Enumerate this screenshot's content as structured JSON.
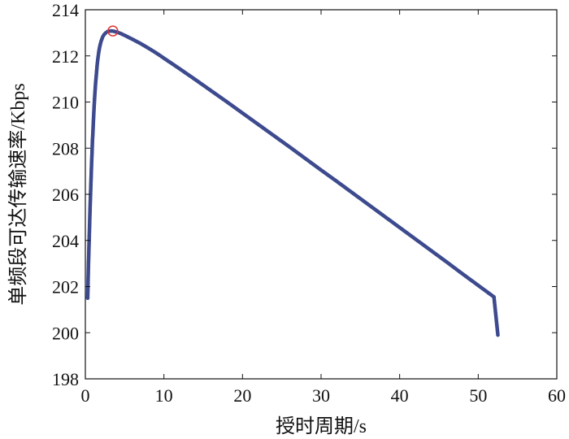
{
  "chart_data": {
    "type": "scatter",
    "title": "",
    "xlabel": "授时周期/s",
    "ylabel": "单频段可达传输速率/Kbps",
    "xlim": [
      0,
      60
    ],
    "ylim": [
      198,
      214
    ],
    "x_ticks": [
      0,
      10,
      20,
      30,
      40,
      50,
      60
    ],
    "y_ticks": [
      198,
      200,
      202,
      204,
      206,
      208,
      210,
      212,
      214
    ],
    "x_tick_labels": [
      "0",
      "10",
      "20",
      "30",
      "40",
      "50",
      "60"
    ],
    "y_tick_labels": [
      "198",
      "200",
      "202",
      "204",
      "206",
      "208",
      "210",
      "212",
      "214"
    ],
    "grid": false,
    "series": [
      {
        "points": [
          [
            0.3,
            201.5
          ],
          [
            0.35,
            202.3
          ],
          [
            0.4,
            203.0
          ],
          [
            0.45,
            203.6
          ],
          [
            0.5,
            204.2
          ],
          [
            0.55,
            204.8
          ],
          [
            0.6,
            205.4
          ],
          [
            0.65,
            205.9
          ],
          [
            0.7,
            206.4
          ],
          [
            0.75,
            206.9
          ],
          [
            0.8,
            207.4
          ],
          [
            0.85,
            207.8
          ],
          [
            0.9,
            208.3
          ],
          [
            0.95,
            208.6
          ],
          [
            1.0,
            209.0
          ],
          [
            1.1,
            209.7
          ],
          [
            1.2,
            210.3
          ],
          [
            1.3,
            210.8
          ],
          [
            1.4,
            211.2
          ],
          [
            1.5,
            211.6
          ],
          [
            1.6,
            211.9
          ],
          [
            1.7,
            212.15
          ],
          [
            1.8,
            212.35
          ],
          [
            1.9,
            212.5
          ],
          [
            2.0,
            212.63
          ],
          [
            2.2,
            212.82
          ],
          [
            2.4,
            212.93
          ],
          [
            2.6,
            213.0
          ],
          [
            2.8,
            213.05
          ],
          [
            3.0,
            213.07
          ],
          [
            3.3,
            213.08
          ],
          [
            3.6,
            213.07
          ],
          [
            4.0,
            213.03
          ],
          [
            4.5,
            212.97
          ],
          [
            5,
            212.89
          ],
          [
            6,
            212.72
          ],
          [
            7,
            212.54
          ],
          [
            8,
            212.34
          ],
          [
            9,
            212.13
          ],
          [
            10,
            211.9
          ],
          [
            12,
            211.44
          ],
          [
            14,
            210.97
          ],
          [
            16,
            210.49
          ],
          [
            18,
            210.01
          ],
          [
            20,
            209.52
          ],
          [
            22,
            209.03
          ],
          [
            24,
            208.54
          ],
          [
            26,
            208.05
          ],
          [
            28,
            207.55
          ],
          [
            30,
            207.05
          ],
          [
            32,
            206.56
          ],
          [
            34,
            206.06
          ],
          [
            36,
            205.56
          ],
          [
            38,
            205.06
          ],
          [
            40,
            204.56
          ],
          [
            42,
            204.06
          ],
          [
            44,
            203.56
          ],
          [
            46,
            203.06
          ],
          [
            48,
            202.55
          ],
          [
            50,
            202.05
          ],
          [
            51,
            201.8
          ],
          [
            52,
            201.55
          ],
          [
            52.5,
            199.9
          ]
        ],
        "color": "#3d4a8e"
      }
    ],
    "highlight": {
      "x": 3.5,
      "y": 213.08,
      "color": "#e03030"
    }
  }
}
